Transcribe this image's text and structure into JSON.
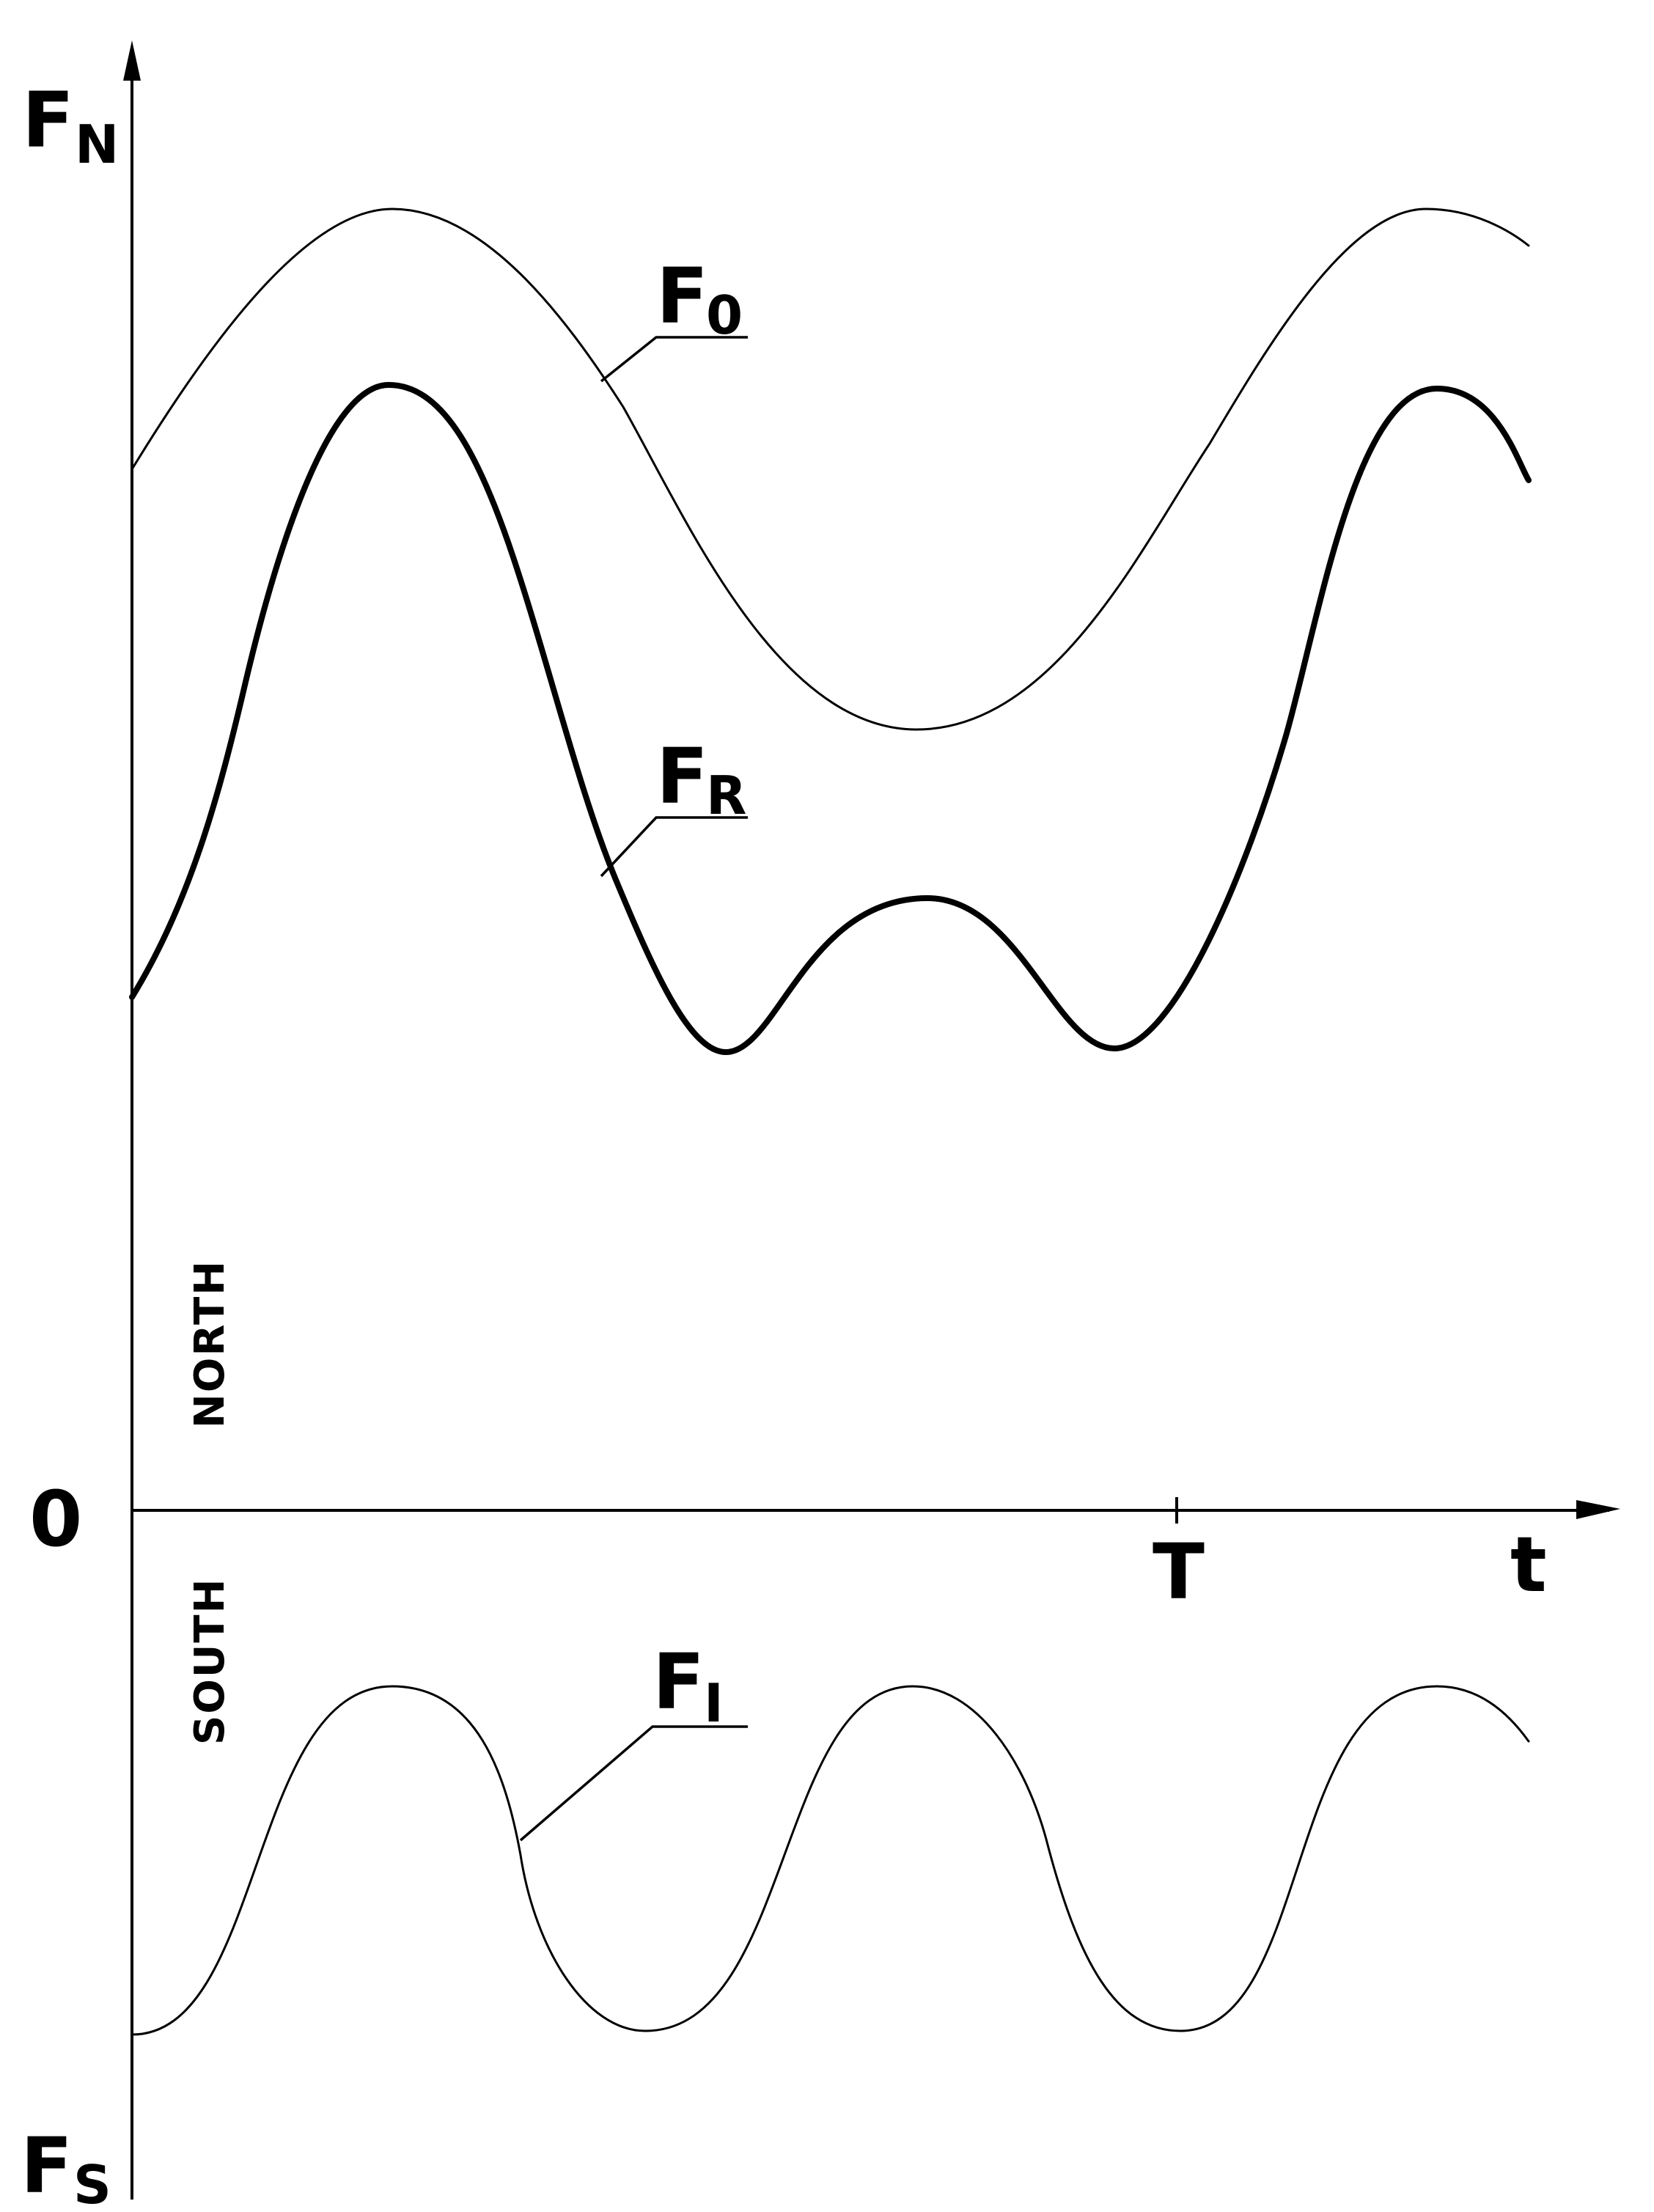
{
  "axes": {
    "y_top_label": "F",
    "y_top_sub": "N",
    "y_bottom_label": "F",
    "y_bottom_sub": "S",
    "origin_label": "0",
    "x_label": "t",
    "period_label": "T",
    "north_label": "NORTH",
    "south_label": "SOUTH"
  },
  "curves": {
    "f0": {
      "label": "F",
      "sub": "0"
    },
    "fr": {
      "label": "F",
      "sub": "R"
    },
    "fi": {
      "label": "F",
      "sub": "I"
    }
  }
}
